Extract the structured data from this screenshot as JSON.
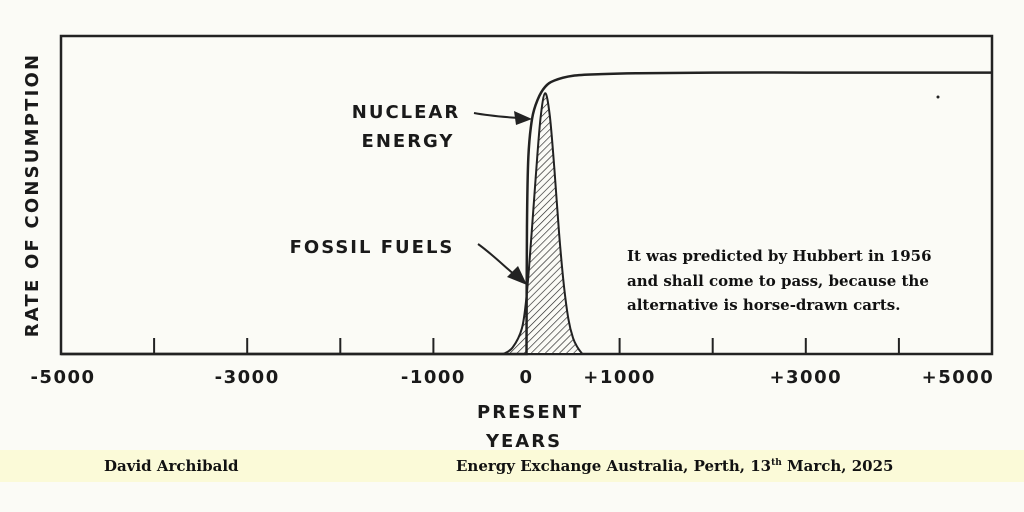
{
  "chart_data": {
    "type": "line",
    "ylabel": "RATE OF CONSUMPTION",
    "xlabel_line1": "PRESENT",
    "xlabel_line2": "YEARS",
    "xlim": [
      -5000,
      5000
    ],
    "ylim": [
      0,
      100
    ],
    "x_ticks": [
      -5000,
      -4000,
      -3000,
      -2000,
      -1000,
      0,
      1000,
      2000,
      3000,
      4000,
      5000
    ],
    "x_tick_labels": [
      {
        "x": -5000,
        "label": "-5000"
      },
      {
        "x": -3000,
        "label": "-3000"
      },
      {
        "x": -1000,
        "label": "-1000"
      },
      {
        "x": 0,
        "label": "0"
      },
      {
        "x": 1000,
        "label": "+1000"
      },
      {
        "x": 3000,
        "label": "+3000"
      },
      {
        "x": 5000,
        "label": "+5000"
      }
    ],
    "series": [
      {
        "name": "NUCLEAR ENERGY",
        "style": "solid",
        "x": [
          -5000,
          0,
          5,
          20,
          60,
          120,
          200,
          300,
          500,
          800,
          1200,
          2000,
          3000,
          4000,
          5000
        ],
        "y": [
          0,
          0,
          40,
          62,
          74,
          80,
          84,
          86,
          87.5,
          88,
          88.3,
          88.5,
          88.5,
          88.5,
          88.5
        ]
      },
      {
        "name": "FOSSIL FUELS",
        "style": "hatched",
        "x": [
          -250,
          -150,
          -50,
          0,
          50,
          100,
          150,
          200,
          250,
          300,
          350,
          400,
          450,
          500,
          550,
          600
        ],
        "y": [
          0,
          2,
          8,
          18,
          36,
          56,
          74,
          82,
          75,
          58,
          38,
          22,
          11,
          5,
          2,
          0
        ]
      }
    ],
    "annotations": [
      {
        "text_lines": [
          "NUCLEAR",
          "ENERGY"
        ],
        "points_to": "NUCLEAR ENERGY"
      },
      {
        "text_lines": [
          "FOSSIL FUELS"
        ],
        "points_to": "FOSSIL FUELS"
      }
    ],
    "note": [
      "It was predicted by Hubbert in 1956",
      "and shall come to pass, because the",
      "alternative is horse-drawn carts."
    ]
  },
  "footer": {
    "author": "David Archibald",
    "event_prefix": "Energy Exchange Australia, Perth, 13",
    "event_suffix_sup": "th",
    "event_suffix": " March, 2025"
  }
}
